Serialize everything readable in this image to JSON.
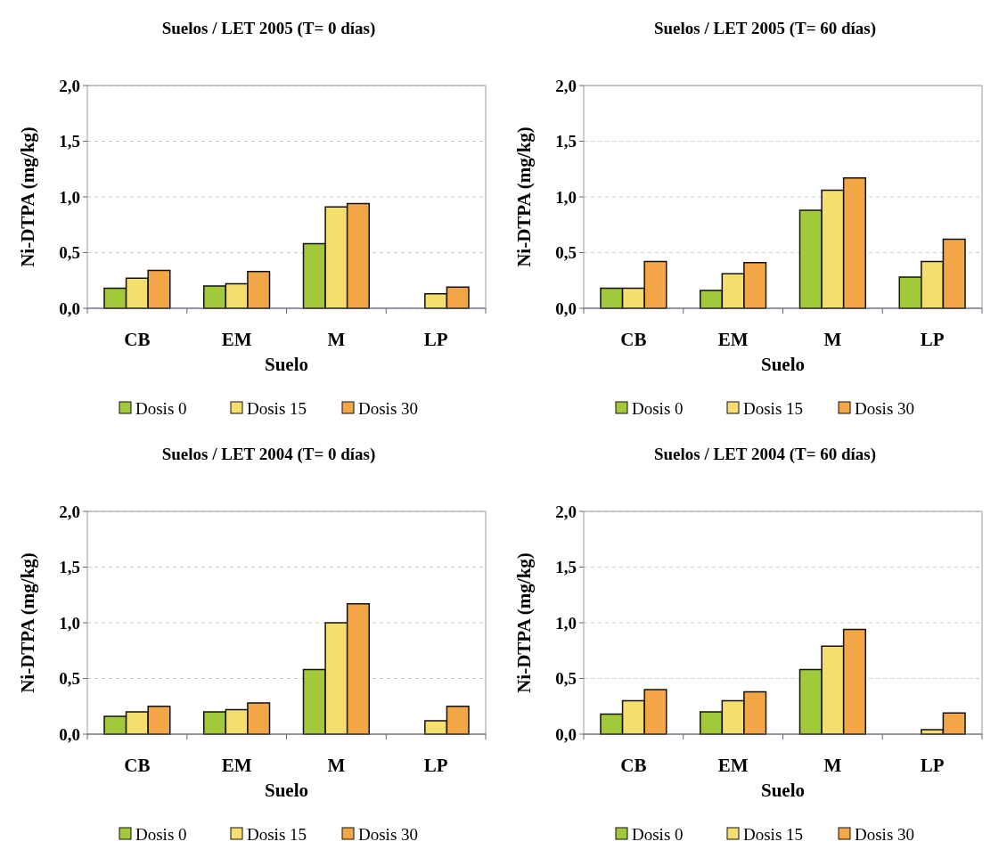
{
  "chart_data": [
    {
      "type": "bar",
      "title": "Suelos / LET 2005 (T= 0 días)",
      "xlabel": "Suelo",
      "ylabel": "Ni-DTPA (mg/kg)",
      "categories": [
        "CB",
        "EM",
        "M",
        "LP"
      ],
      "series": [
        {
          "name": "Dosis 0",
          "color": "#a2c93a",
          "values": [
            0.18,
            0.2,
            0.58,
            null
          ]
        },
        {
          "name": "Dosis 15",
          "color": "#f5de6e",
          "values": [
            0.27,
            0.22,
            0.91,
            0.13
          ]
        },
        {
          "name": "Dosis 30",
          "color": "#f3a646",
          "values": [
            0.34,
            0.33,
            0.94,
            0.19
          ]
        }
      ],
      "ylim": [
        0,
        2
      ],
      "yticks": [
        {
          "value": 0,
          "label": "0,0"
        },
        {
          "value": 0.5,
          "label": "0,5"
        },
        {
          "value": 1,
          "label": "1,0"
        },
        {
          "value": 1.5,
          "label": "1,5"
        },
        {
          "value": 2,
          "label": "2,0"
        }
      ],
      "grid": "y",
      "legend": "bottom"
    },
    {
      "type": "bar",
      "title": "Suelos / LET 2005 (T= 60 días)",
      "xlabel": "Suelo",
      "ylabel": "Ni-DTPA (mg/kg)",
      "categories": [
        "CB",
        "EM",
        "M",
        "LP"
      ],
      "series": [
        {
          "name": "Dosis 0",
          "color": "#a2c93a",
          "values": [
            0.18,
            0.16,
            0.88,
            0.28
          ]
        },
        {
          "name": "Dosis 15",
          "color": "#f5de6e",
          "values": [
            0.18,
            0.31,
            1.06,
            0.42
          ]
        },
        {
          "name": "Dosis 30",
          "color": "#f3a646",
          "values": [
            0.42,
            0.41,
            1.17,
            0.62
          ]
        }
      ],
      "ylim": [
        0,
        2
      ],
      "yticks": [
        {
          "value": 0,
          "label": "0,0"
        },
        {
          "value": 0.5,
          "label": "0,5"
        },
        {
          "value": 1,
          "label": "1,0"
        },
        {
          "value": 1.5,
          "label": "1,5"
        },
        {
          "value": 2,
          "label": "2,0"
        }
      ],
      "grid": "y",
      "legend": "bottom"
    },
    {
      "type": "bar",
      "title": "Suelos / LET 2004 (T= 0 días)",
      "xlabel": "Suelo",
      "ylabel": "Ni-DTPA (mg/kg)",
      "categories": [
        "CB",
        "EM",
        "M",
        "LP"
      ],
      "series": [
        {
          "name": "Dosis 0",
          "color": "#a2c93a",
          "values": [
            0.16,
            0.2,
            0.58,
            null
          ]
        },
        {
          "name": "Dosis 15",
          "color": "#f5de6e",
          "values": [
            0.2,
            0.22,
            1.0,
            0.12
          ]
        },
        {
          "name": "Dosis 30",
          "color": "#f3a646",
          "values": [
            0.25,
            0.28,
            1.17,
            0.25
          ]
        }
      ],
      "ylim": [
        0,
        2
      ],
      "yticks": [
        {
          "value": 0,
          "label": "0,0"
        },
        {
          "value": 0.5,
          "label": "0,5"
        },
        {
          "value": 1,
          "label": "1,0"
        },
        {
          "value": 1.5,
          "label": "1,5"
        },
        {
          "value": 2,
          "label": "2,0"
        }
      ],
      "grid": "y",
      "legend": "bottom"
    },
    {
      "type": "bar",
      "title": "Suelos / LET 2004 (T= 60 días)",
      "xlabel": "Suelo",
      "ylabel": "Ni-DTPA (mg/kg)",
      "categories": [
        "CB",
        "EM",
        "M",
        "LP"
      ],
      "series": [
        {
          "name": "Dosis 0",
          "color": "#a2c93a",
          "values": [
            0.18,
            0.2,
            0.58,
            null
          ]
        },
        {
          "name": "Dosis 15",
          "color": "#f5de6e",
          "values": [
            0.3,
            0.3,
            0.79,
            0.04
          ]
        },
        {
          "name": "Dosis 30",
          "color": "#f3a646",
          "values": [
            0.4,
            0.38,
            0.94,
            0.19
          ]
        }
      ],
      "ylim": [
        0,
        2
      ],
      "yticks": [
        {
          "value": 0,
          "label": "0,0"
        },
        {
          "value": 0.5,
          "label": "0,5"
        },
        {
          "value": 1,
          "label": "1,0"
        },
        {
          "value": 1.5,
          "label": "1,5"
        },
        {
          "value": 2,
          "label": "2,0"
        }
      ],
      "grid": "y",
      "legend": "bottom"
    }
  ]
}
